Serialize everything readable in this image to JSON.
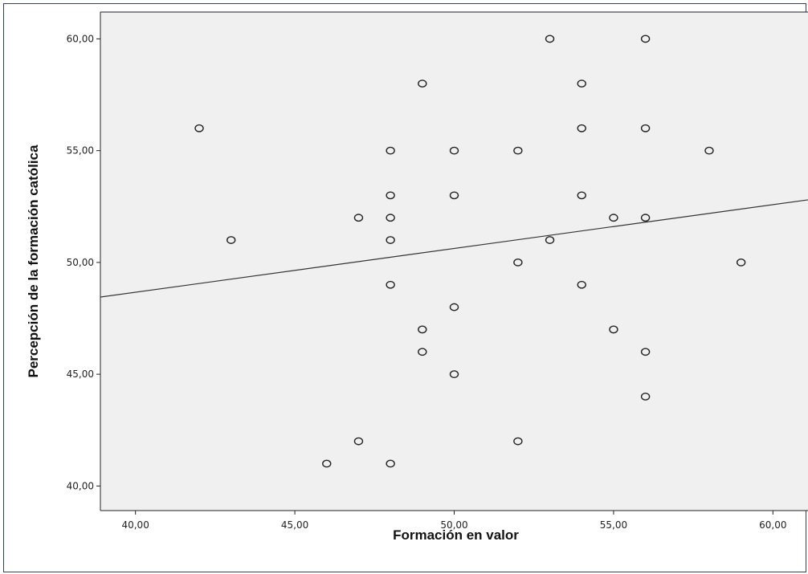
{
  "chart_data": {
    "type": "scatter",
    "title": "",
    "xlabel": "Formación en valor",
    "ylabel": "Percepción de la formación católica",
    "xlim": [
      38.9,
      61.1
    ],
    "ylim": [
      38.9,
      61.2
    ],
    "x_ticks": [
      40,
      45,
      50,
      55,
      60
    ],
    "y_ticks": [
      40,
      45,
      50,
      55,
      60
    ],
    "x_tick_labels": [
      "40,00",
      "45,00",
      "50,00",
      "55,00",
      "60,00"
    ],
    "y_tick_labels": [
      "40,00",
      "45,00",
      "50,00",
      "55,00",
      "60,00"
    ],
    "grid": false,
    "plot_background": "#f0f0f0",
    "marker_color": "#222222",
    "fit_line": {
      "x": [
        38.9,
        61.1
      ],
      "y": [
        48.45,
        52.8
      ]
    },
    "points": [
      {
        "x": 42,
        "y": 56
      },
      {
        "x": 43,
        "y": 51
      },
      {
        "x": 46,
        "y": 41
      },
      {
        "x": 47,
        "y": 42
      },
      {
        "x": 47,
        "y": 52
      },
      {
        "x": 48,
        "y": 41
      },
      {
        "x": 48,
        "y": 49
      },
      {
        "x": 48,
        "y": 51
      },
      {
        "x": 48,
        "y": 52
      },
      {
        "x": 48,
        "y": 53
      },
      {
        "x": 48,
        "y": 55
      },
      {
        "x": 49,
        "y": 46
      },
      {
        "x": 49,
        "y": 47
      },
      {
        "x": 49,
        "y": 58
      },
      {
        "x": 50,
        "y": 45
      },
      {
        "x": 50,
        "y": 48
      },
      {
        "x": 50,
        "y": 53
      },
      {
        "x": 50,
        "y": 55
      },
      {
        "x": 52,
        "y": 42
      },
      {
        "x": 52,
        "y": 50
      },
      {
        "x": 52,
        "y": 55
      },
      {
        "x": 53,
        "y": 51
      },
      {
        "x": 53,
        "y": 60
      },
      {
        "x": 54,
        "y": 49
      },
      {
        "x": 54,
        "y": 53
      },
      {
        "x": 54,
        "y": 56
      },
      {
        "x": 54,
        "y": 58
      },
      {
        "x": 55,
        "y": 47
      },
      {
        "x": 55,
        "y": 52
      },
      {
        "x": 56,
        "y": 44
      },
      {
        "x": 56,
        "y": 46
      },
      {
        "x": 56,
        "y": 52
      },
      {
        "x": 56,
        "y": 56
      },
      {
        "x": 56,
        "y": 60
      },
      {
        "x": 58,
        "y": 55
      },
      {
        "x": 59,
        "y": 50
      }
    ]
  }
}
